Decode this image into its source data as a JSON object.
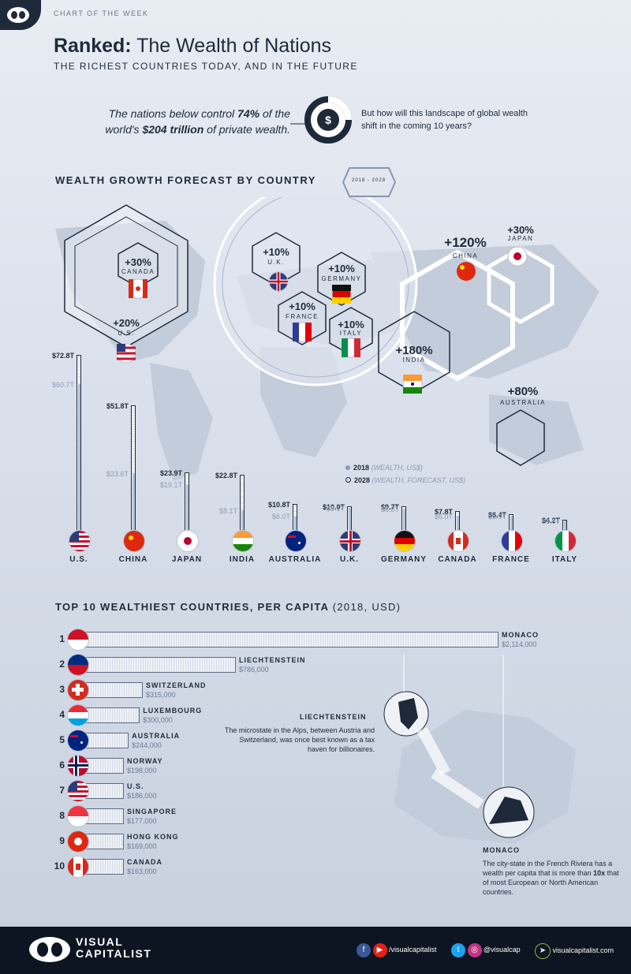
{
  "header": {
    "kicker": "CHART OF THE WEEK",
    "title_bold": "Ranked:",
    "title_rest": " The Wealth of Nations",
    "subtitle": "THE RICHEST COUNTRIES TODAY, AND IN THE FUTURE"
  },
  "intro": {
    "part1": "The nations below control ",
    "pct": "74%",
    "part2": " of the world's ",
    "amount": "$204 trillion",
    "part3": " of private wealth.",
    "question": "But how will this landscape of global wealth shift in the coming 10 years?",
    "icon": "dollar-icon"
  },
  "section1": {
    "title": "WEALTH GROWTH FORECAST BY COUNTRY",
    "years": "2018 - 2028"
  },
  "growth": [
    {
      "pct": "+30%",
      "country": "CANADA"
    },
    {
      "pct": "+20%",
      "country": "U.S."
    },
    {
      "pct": "+10%",
      "country": "U.K."
    },
    {
      "pct": "+10%",
      "country": "GERMANY"
    },
    {
      "pct": "+10%",
      "country": "FRANCE"
    },
    {
      "pct": "+10%",
      "country": "ITALY"
    },
    {
      "pct": "+120%",
      "country": "CHINA"
    },
    {
      "pct": "+30%",
      "country": "JAPAN"
    },
    {
      "pct": "+180%",
      "country": "INDIA"
    },
    {
      "pct": "+80%",
      "country": "AUSTRALIA"
    }
  ],
  "legend": {
    "y2018": "2018",
    "y2018_note": "(WEALTH, US$)",
    "y2028": "2028",
    "y2028_note": "(WEALTH, FORECAST, US$)"
  },
  "chart_data": [
    {
      "type": "bar",
      "categories": [
        "U.S.",
        "CHINA",
        "JAPAN",
        "INDIA",
        "AUSTRALIA",
        "U.K.",
        "GERMANY",
        "CANADA",
        "FRANCE",
        "ITALY"
      ],
      "series": [
        {
          "name": "2018",
          "values": [
            60.7,
            23.6,
            19.1,
            8.1,
            6.0,
            9.1,
            8.8,
            6.0,
            5.9,
            3.8
          ],
          "labels": [
            "$60.7T",
            "$23.6T",
            "$19.1T",
            "$8.1T",
            "$6.0T",
            "$9.1T",
            "$8.8T",
            "$6.0T",
            "$5.9T",
            "$3.8T"
          ]
        },
        {
          "name": "2028",
          "values": [
            72.8,
            51.8,
            23.9,
            22.8,
            10.8,
            10.0,
            9.7,
            7.8,
            6.4,
            4.2
          ],
          "labels": [
            "$72.8T",
            "$51.8T",
            "$23.9T",
            "$22.8T",
            "$10.8T",
            "$10.0T",
            "$9.7T",
            "$7.8T",
            "$6.4T",
            "$4.2T"
          ]
        }
      ]
    },
    {
      "type": "bar",
      "title": "TOP 10 WEALTHIEST COUNTRIES, PER CAPITA",
      "title_note": "(2018, USD)",
      "categories": [
        "MONACO",
        "LIECHTENSTEIN",
        "SWITZERLAND",
        "LUXEMBOURG",
        "AUSTRALIA",
        "NORWAY",
        "U.S.",
        "SINGAPORE",
        "HONG KONG",
        "CANADA"
      ],
      "ranks": [
        "1",
        "2",
        "3",
        "4",
        "5",
        "6",
        "7",
        "8",
        "9",
        "10"
      ],
      "values": [
        2114000,
        786000,
        315000,
        300000,
        244000,
        198000,
        186000,
        177000,
        169000,
        163000
      ],
      "labels": [
        "$2,114,000",
        "$786,000",
        "$315,000",
        "$300,000",
        "$244,000",
        "$198,000",
        "$186,000",
        "$177,000",
        "$169,000",
        "$163,000"
      ]
    }
  ],
  "notes": {
    "liechtenstein_title": "LIECHTENSTEIN",
    "liechtenstein_text": "The microstate in the Alps, between Austria and Switzerland, was once best known as a tax haven for billionaires.",
    "monaco_title": "MONACO",
    "monaco_text_1": "The city-state in the French Riviera has a wealth per capita that is more than ",
    "monaco_text_bold": "10x",
    "monaco_text_2": " that of most European or North American countries."
  },
  "footer": {
    "brand_1": "VISUAL",
    "brand_2": "CAPITALIST",
    "handle_1": "/visualcapitalist",
    "handle_2": "@visualcap",
    "site": "visualcapitalist.com"
  },
  "colors": {
    "ink": "#1e2a3a",
    "muted": "#8a9bb7",
    "footer": "#0d1522",
    "bar_fill": "#b4c2d8"
  }
}
